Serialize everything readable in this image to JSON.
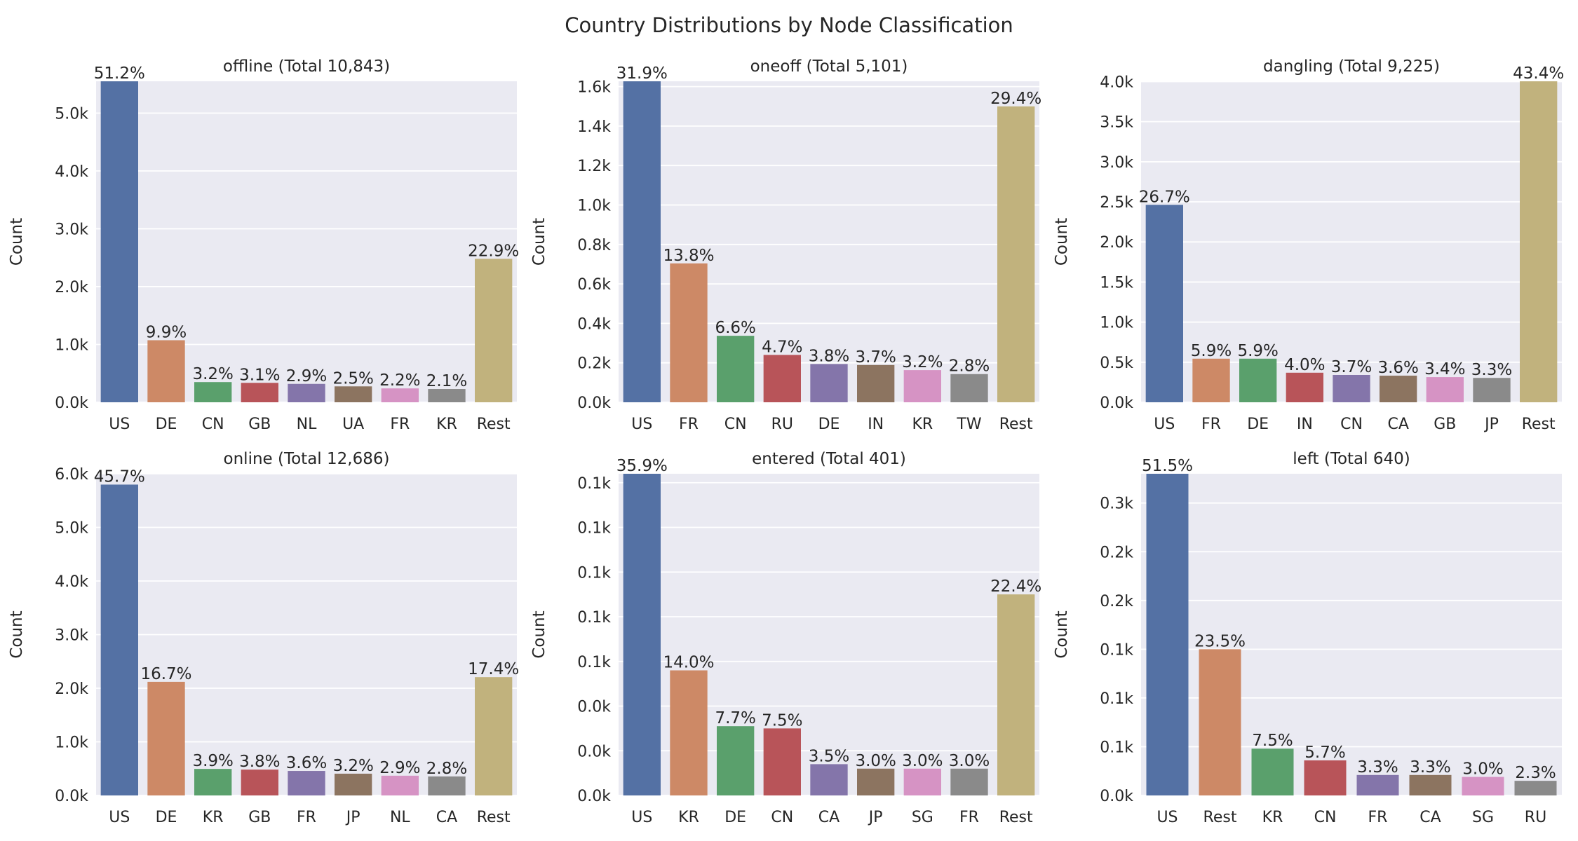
{
  "chart_data": {
    "title": "Country Distributions by Node Classification",
    "charts": [
      {
        "type": "bar",
        "title": "offline (Total 10,843)",
        "ylabel": "Count",
        "categories": [
          "US",
          "DE",
          "CN",
          "GB",
          "NL",
          "UA",
          "FR",
          "KR",
          "Rest"
        ],
        "values": [
          5550,
          1073,
          349,
          336,
          318,
          275,
          240,
          230,
          2481
        ],
        "labels": [
          "51.2%",
          "9.9%",
          "3.2%",
          "3.1%",
          "2.9%",
          "2.5%",
          "2.2%",
          "2.1%",
          "22.9%"
        ],
        "ylim": [
          0,
          5550
        ],
        "yticks": [
          0,
          1000,
          2000,
          3000,
          4000,
          5000
        ],
        "yticklabels": [
          "0.0k",
          "1.0k",
          "2.0k",
          "3.0k",
          "4.0k",
          "5.0k"
        ],
        "colors": [
          "#5471a4",
          "#cd8966",
          "#5aa06c",
          "#b85459",
          "#8475aa",
          "#8c7460",
          "#d693c4",
          "#8a8a8a",
          "#c1b27d"
        ]
      },
      {
        "type": "bar",
        "title": "oneoff (Total 5,101)",
        "ylabel": "Count",
        "categories": [
          "US",
          "FR",
          "CN",
          "RU",
          "DE",
          "IN",
          "KR",
          "TW",
          "Rest"
        ],
        "values": [
          1627,
          704,
          337,
          240,
          194,
          189,
          163,
          143,
          1500
        ],
        "labels": [
          "31.9%",
          "13.8%",
          "6.6%",
          "4.7%",
          "3.8%",
          "3.7%",
          "3.2%",
          "2.8%",
          "29.4%"
        ],
        "ylim": [
          0,
          1627
        ],
        "yticks": [
          0,
          200,
          400,
          600,
          800,
          1000,
          1200,
          1400,
          1600
        ],
        "yticklabels": [
          "0.0k",
          "0.2k",
          "0.4k",
          "0.6k",
          "0.8k",
          "1.0k",
          "1.2k",
          "1.4k",
          "1.6k"
        ],
        "colors": [
          "#5471a4",
          "#cd8966",
          "#5aa06c",
          "#b85459",
          "#8475aa",
          "#8c7460",
          "#d693c4",
          "#8a8a8a",
          "#c1b27d"
        ]
      },
      {
        "type": "bar",
        "title": "dangling (Total 9,225)",
        "ylabel": "Count",
        "categories": [
          "US",
          "FR",
          "DE",
          "IN",
          "CN",
          "CA",
          "GB",
          "JP",
          "Rest"
        ],
        "values": [
          2463,
          544,
          544,
          369,
          341,
          332,
          314,
          304,
          4004
        ],
        "labels": [
          "26.7%",
          "5.9%",
          "5.9%",
          "4.0%",
          "3.7%",
          "3.6%",
          "3.4%",
          "3.3%",
          "43.4%"
        ],
        "ylim": [
          0,
          4004
        ],
        "yticks": [
          0,
          500,
          1000,
          1500,
          2000,
          2500,
          3000,
          3500,
          4000
        ],
        "yticklabels": [
          "0.0k",
          "0.5k",
          "1.0k",
          "1.5k",
          "2.0k",
          "2.5k",
          "3.0k",
          "3.5k",
          "4.0k"
        ],
        "colors": [
          "#5471a4",
          "#cd8966",
          "#5aa06c",
          "#b85459",
          "#8475aa",
          "#8c7460",
          "#d693c4",
          "#8a8a8a",
          "#c1b27d"
        ]
      },
      {
        "type": "bar",
        "title": "online (Total 12,686)",
        "ylabel": "Count",
        "categories": [
          "US",
          "DE",
          "KR",
          "GB",
          "FR",
          "JP",
          "NL",
          "CA",
          "Rest"
        ],
        "values": [
          5798,
          2119,
          495,
          482,
          457,
          406,
          368,
          355,
          2207
        ],
        "labels": [
          "45.7%",
          "16.7%",
          "3.9%",
          "3.8%",
          "3.6%",
          "3.2%",
          "2.9%",
          "2.8%",
          "17.4%"
        ],
        "ylim": [
          0,
          6000
        ],
        "yticks": [
          0,
          1000,
          2000,
          3000,
          4000,
          5000,
          6000
        ],
        "yticklabels": [
          "0.0k",
          "1.0k",
          "2.0k",
          "3.0k",
          "4.0k",
          "5.0k",
          "6.0k"
        ],
        "colors": [
          "#5471a4",
          "#cd8966",
          "#5aa06c",
          "#b85459",
          "#8475aa",
          "#8c7460",
          "#d693c4",
          "#8a8a8a",
          "#c1b27d"
        ]
      },
      {
        "type": "bar",
        "title": "entered (Total 401)",
        "ylabel": "Count",
        "categories": [
          "US",
          "KR",
          "DE",
          "CN",
          "CA",
          "JP",
          "SG",
          "FR",
          "Rest"
        ],
        "values": [
          144,
          56,
          31,
          30,
          14,
          12,
          12,
          12,
          90
        ],
        "labels": [
          "35.9%",
          "14.0%",
          "7.7%",
          "7.5%",
          "3.5%",
          "3.0%",
          "3.0%",
          "3.0%",
          "22.4%"
        ],
        "ylim": [
          0,
          144
        ],
        "yticks": [
          0,
          20,
          40,
          60,
          80,
          100,
          120,
          140
        ],
        "yticklabels": [
          "0.0k",
          "0.0k",
          "0.0k",
          "0.1k",
          "0.1k",
          "0.1k",
          "0.1k",
          "0.1k"
        ],
        "colors": [
          "#5471a4",
          "#cd8966",
          "#5aa06c",
          "#b85459",
          "#8475aa",
          "#8c7460",
          "#d693c4",
          "#8a8a8a",
          "#c1b27d"
        ]
      },
      {
        "type": "bar",
        "title": "left (Total 640)",
        "ylabel": "Count",
        "categories": [
          "US",
          "Rest",
          "KR",
          "CN",
          "FR",
          "CA",
          "SG",
          "RU"
        ],
        "values": [
          330,
          150,
          48,
          36,
          21,
          21,
          19,
          15
        ],
        "labels": [
          "51.5%",
          "23.5%",
          "7.5%",
          "5.7%",
          "3.3%",
          "3.3%",
          "3.0%",
          "2.3%"
        ],
        "ylim": [
          0,
          330
        ],
        "yticks": [
          0,
          50,
          100,
          150,
          200,
          250,
          300
        ],
        "yticklabels": [
          "0.0k",
          "0.1k",
          "0.1k",
          "0.1k",
          "0.2k",
          "0.2k",
          "0.3k"
        ],
        "colors": [
          "#5471a4",
          "#cd8966",
          "#5aa06c",
          "#b85459",
          "#8475aa",
          "#8c7460",
          "#d693c4",
          "#8a8a8a"
        ]
      }
    ],
    "style": {
      "panel_background": "#eaeaf2",
      "grid_color": "#ffffff",
      "text_color": "#262626",
      "grid": true
    }
  }
}
